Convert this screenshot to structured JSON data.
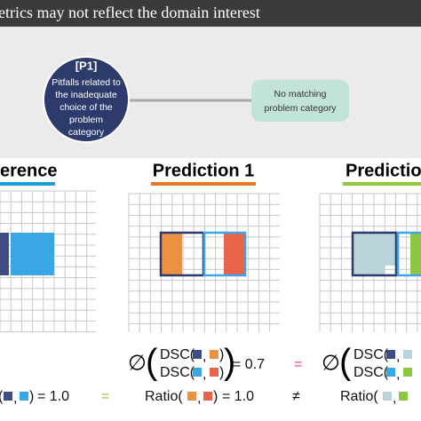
{
  "header": {
    "title": "etrics may not reflect the domain interest"
  },
  "pitfall": {
    "tag": "[P1]",
    "lines": [
      "Pitfalls related to",
      "the inadequate",
      "choice of the",
      "problem",
      "category"
    ]
  },
  "category_box": {
    "lines": [
      "No matching",
      "problem category"
    ]
  },
  "panels": [
    {
      "title": "erence"
    },
    {
      "title": "Prediction 1"
    },
    {
      "title": "Prediction"
    }
  ],
  "formulas": {
    "empty_set": "∅",
    "open": "(",
    "dsc": "DSC(",
    "comma": ",",
    "close": ")",
    "dsc_result": "= 0.7",
    "ratio": "Ratio(",
    "ratio_result": "= 1.0",
    "equals": "=",
    "not_equals": "≠"
  }
}
